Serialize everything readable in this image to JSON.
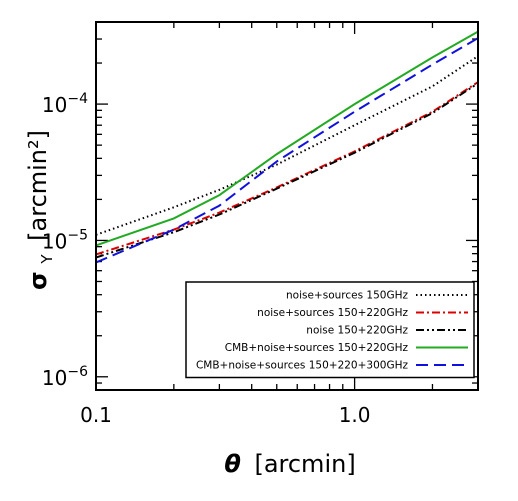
{
  "chart_data": {
    "type": "line",
    "title": "",
    "xlabel": {
      "symbol": "θ",
      "unit": "[arcmin]"
    },
    "ylabel": {
      "symbol": "σ",
      "sub": "Y",
      "unit": "[arcmin²]"
    },
    "x_scale": "log",
    "y_scale": "log",
    "xlim": [
      0.1,
      3.0
    ],
    "ylim": [
      8e-07,
      0.0004
    ],
    "x_tick_labels": [
      {
        "value": 0.1,
        "label": "0.1"
      },
      {
        "value": 1.0,
        "label": "1.0"
      }
    ],
    "y_tick_labels": [
      {
        "value": 1e-06,
        "base": "10",
        "exp": "−6"
      },
      {
        "value": 1e-05,
        "base": "10",
        "exp": "−5"
      },
      {
        "value": 0.0001,
        "base": "10",
        "exp": "−4"
      }
    ],
    "grid": false,
    "legend_placement": "bottom-right",
    "series": [
      {
        "name": "noise+sources 150GHz",
        "color": "#000000",
        "dash": "dotted",
        "x": [
          0.1,
          0.2,
          0.3,
          0.5,
          1.0,
          2.0,
          3.0
        ],
        "y": [
          1.1e-05,
          1.75e-05,
          2.35e-05,
          3.6e-05,
          7e-05,
          0.000135,
          0.000225
        ]
      },
      {
        "name": "noise+sources 150+220GHz",
        "color": "#dd0000",
        "dash": "dashdot",
        "x": [
          0.1,
          0.2,
          0.3,
          0.5,
          1.0,
          2.0,
          3.0
        ],
        "y": [
          7.9e-06,
          1.2e-05,
          1.6e-05,
          2.45e-05,
          4.5e-05,
          8.8e-05,
          0.000145
        ]
      },
      {
        "name": "noise 150+220GHz",
        "color": "#000000",
        "dash": "dashdotdot",
        "x": [
          0.1,
          0.2,
          0.3,
          0.5,
          1.0,
          2.0,
          3.0
        ],
        "y": [
          7.5e-06,
          1.15e-05,
          1.55e-05,
          2.4e-05,
          4.4e-05,
          8.6e-05,
          0.000142
        ]
      },
      {
        "name": "CMB+noise+sources 150+220GHz",
        "color": "#22aa22",
        "dash": "solid",
        "x": [
          0.1,
          0.2,
          0.3,
          0.5,
          1.0,
          2.0,
          3.0
        ],
        "y": [
          9.2e-06,
          1.45e-05,
          2.15e-05,
          4.3e-05,
          0.0001,
          0.00022,
          0.00034
        ]
      },
      {
        "name": "CMB+noise+sources 150+220+300GHz",
        "color": "#1111dd",
        "dash": "dashed",
        "x": [
          0.1,
          0.2,
          0.3,
          0.5,
          1.0,
          2.0,
          3.0
        ],
        "y": [
          6.9e-06,
          1.2e-05,
          1.8e-05,
          3.8e-05,
          8.8e-05,
          0.000195,
          0.000305
        ]
      }
    ]
  }
}
